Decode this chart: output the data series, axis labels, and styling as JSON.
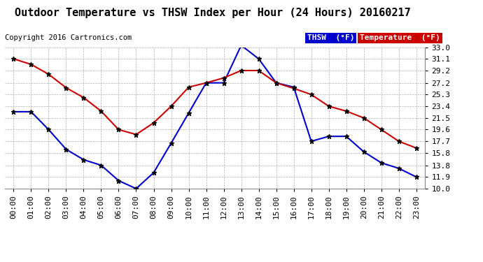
{
  "title": "Outdoor Temperature vs THSW Index per Hour (24 Hours) 20160217",
  "copyright": "Copyright 2016 Cartronics.com",
  "background_color": "#ffffff",
  "plot_bg_color": "#ffffff",
  "grid_color": "#b0b0b0",
  "hours": [
    0,
    1,
    2,
    3,
    4,
    5,
    6,
    7,
    8,
    9,
    10,
    11,
    12,
    13,
    14,
    15,
    16,
    17,
    18,
    19,
    20,
    21,
    22,
    23
  ],
  "temperature": [
    31.1,
    30.2,
    28.6,
    26.4,
    24.8,
    22.6,
    19.6,
    18.8,
    20.7,
    23.4,
    26.5,
    27.2,
    28.0,
    29.2,
    29.2,
    27.2,
    26.3,
    25.3,
    23.4,
    22.6,
    21.5,
    19.6,
    17.7,
    16.6
  ],
  "thsw": [
    22.5,
    22.5,
    19.6,
    16.4,
    14.7,
    13.8,
    11.3,
    10.0,
    12.6,
    17.4,
    22.3,
    27.2,
    27.2,
    33.3,
    31.1,
    27.2,
    26.5,
    17.7,
    18.5,
    18.5,
    16.0,
    14.2,
    13.3,
    11.9
  ],
  "ylim": [
    10.0,
    33.0
  ],
  "yticks": [
    10.0,
    11.9,
    13.8,
    15.8,
    17.7,
    19.6,
    21.5,
    23.4,
    25.3,
    27.2,
    29.2,
    31.1,
    33.0
  ],
  "temp_color": "#cc0000",
  "thsw_color": "#0000cc",
  "marker": "*",
  "legend_thsw_bg": "#0000cc",
  "legend_temp_bg": "#cc0000",
  "legend_text_color": "#ffffff",
  "title_fontsize": 11,
  "copyright_fontsize": 7.5,
  "tick_fontsize": 8,
  "legend_fontsize": 8
}
